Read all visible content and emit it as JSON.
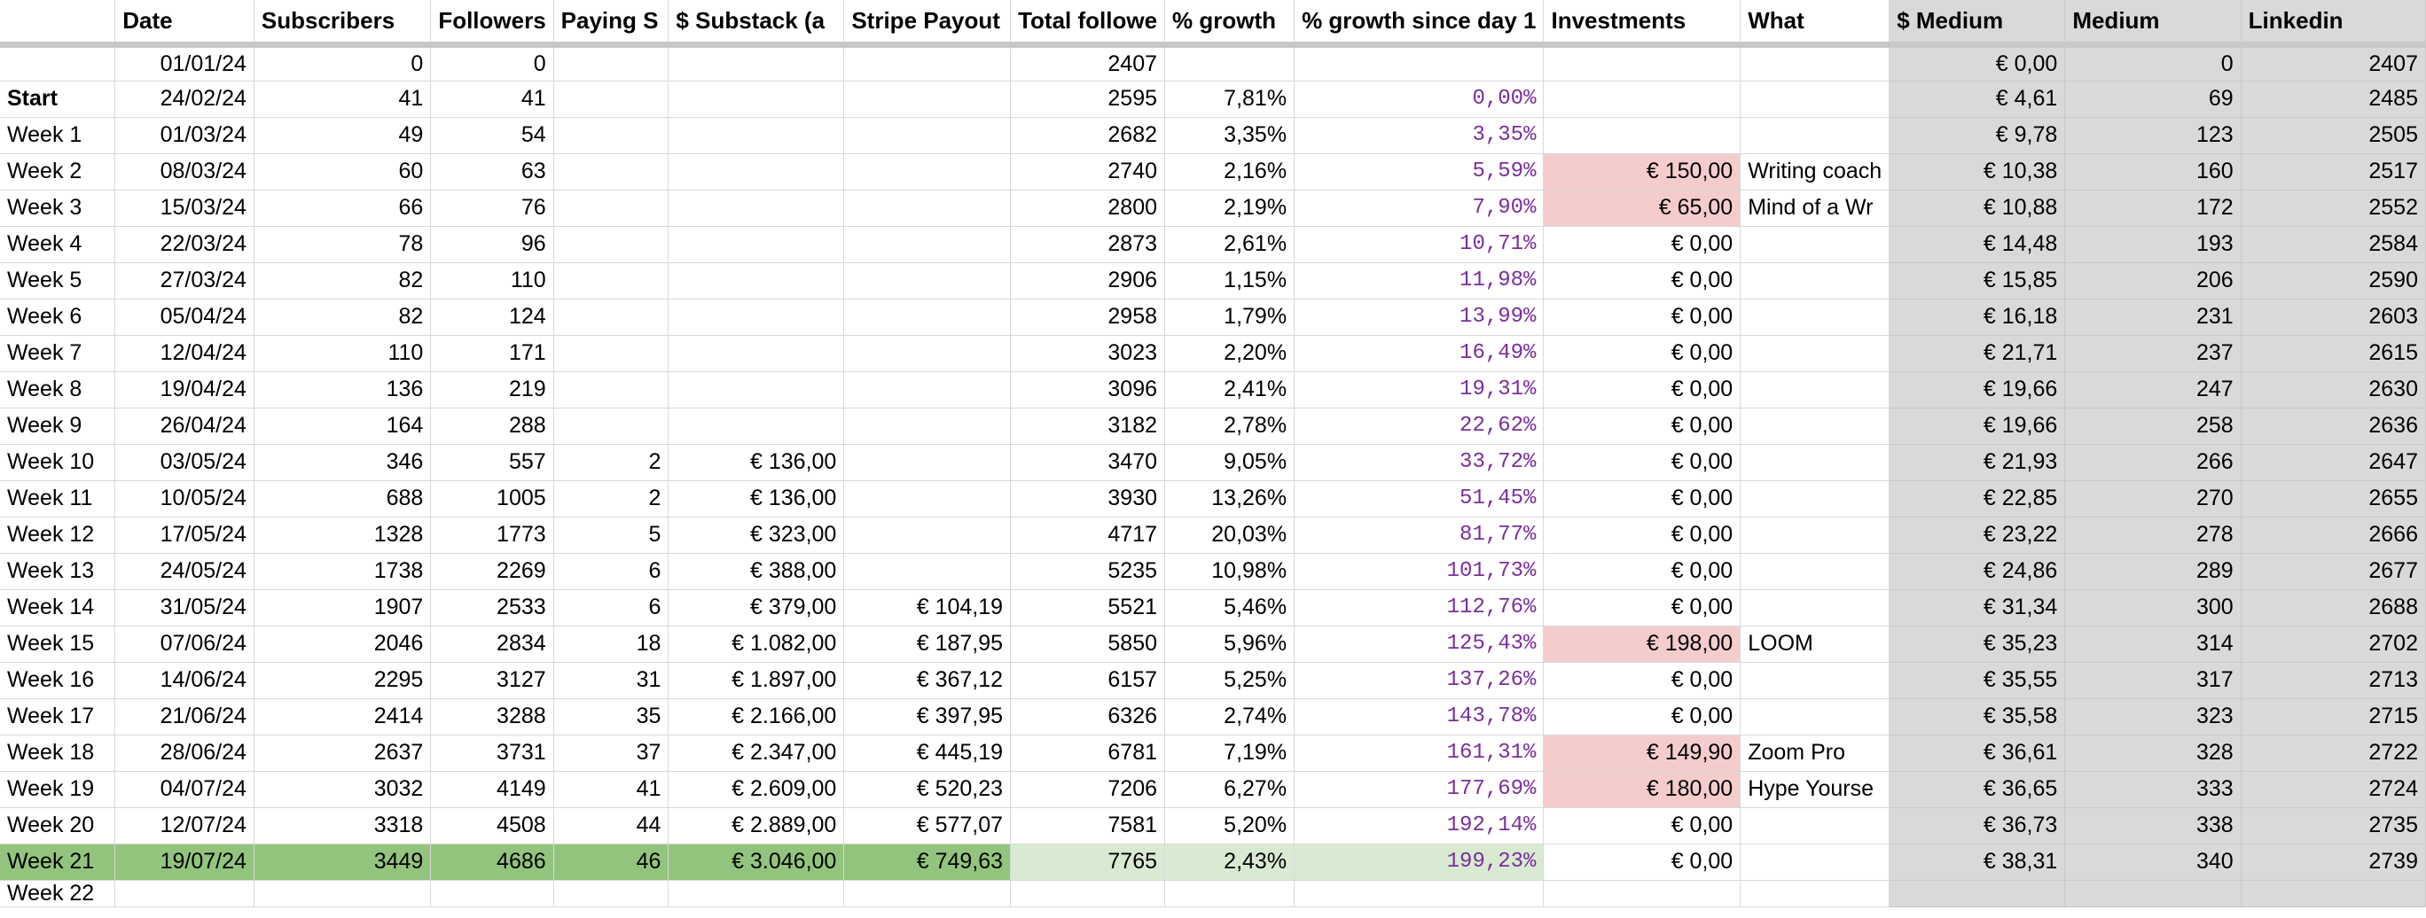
{
  "headers": [
    "",
    "Date",
    "Subscribers",
    "Followers",
    "Paying S",
    "$ Substack (a",
    "Stripe Payout",
    "Total followe",
    "% growth",
    "% growth since day 1",
    "Investments",
    "What",
    "$ Medium",
    "Medium",
    "Linkedin"
  ],
  "rows": [
    {
      "label": "",
      "date": "01/01/24",
      "subscribers": "0",
      "followers": "0",
      "paying": "",
      "substack": "",
      "stripe": "",
      "total": "2407",
      "growth": "",
      "growth_day1": "",
      "investments": "",
      "what": "",
      "medium_usd": "€ 0,00",
      "medium": "0",
      "linkedin": "2407"
    },
    {
      "label": "Start",
      "date": "24/02/24",
      "subscribers": "41",
      "followers": "41",
      "paying": "",
      "substack": "",
      "stripe": "",
      "total": "2595",
      "growth": "7,81%",
      "growth_day1": "0,00%",
      "investments": "",
      "what": "",
      "medium_usd": "€ 4,61",
      "medium": "69",
      "linkedin": "2485"
    },
    {
      "label": "Week 1",
      "date": "01/03/24",
      "subscribers": "49",
      "followers": "54",
      "paying": "",
      "substack": "",
      "stripe": "",
      "total": "2682",
      "growth": "3,35%",
      "growth_day1": "3,35%",
      "investments": "",
      "what": "",
      "medium_usd": "€ 9,78",
      "medium": "123",
      "linkedin": "2505"
    },
    {
      "label": "Week 2",
      "date": "08/03/24",
      "subscribers": "60",
      "followers": "63",
      "paying": "",
      "substack": "",
      "stripe": "",
      "total": "2740",
      "growth": "2,16%",
      "growth_day1": "5,59%",
      "investments": "€ 150,00",
      "what": "Writing coach",
      "medium_usd": "€ 10,38",
      "medium": "160",
      "linkedin": "2517"
    },
    {
      "label": "Week 3",
      "date": "15/03/24",
      "subscribers": "66",
      "followers": "76",
      "paying": "",
      "substack": "",
      "stripe": "",
      "total": "2800",
      "growth": "2,19%",
      "growth_day1": "7,90%",
      "investments": "€ 65,00",
      "what": "Mind of a Wr",
      "medium_usd": "€ 10,88",
      "medium": "172",
      "linkedin": "2552"
    },
    {
      "label": "Week 4",
      "date": "22/03/24",
      "subscribers": "78",
      "followers": "96",
      "paying": "",
      "substack": "",
      "stripe": "",
      "total": "2873",
      "growth": "2,61%",
      "growth_day1": "10,71%",
      "investments": "€ 0,00",
      "what": "",
      "medium_usd": "€ 14,48",
      "medium": "193",
      "linkedin": "2584"
    },
    {
      "label": "Week 5",
      "date": "27/03/24",
      "subscribers": "82",
      "followers": "110",
      "paying": "",
      "substack": "",
      "stripe": "",
      "total": "2906",
      "growth": "1,15%",
      "growth_day1": "11,98%",
      "investments": "€ 0,00",
      "what": "",
      "medium_usd": "€ 15,85",
      "medium": "206",
      "linkedin": "2590"
    },
    {
      "label": "Week 6",
      "date": "05/04/24",
      "subscribers": "82",
      "followers": "124",
      "paying": "",
      "substack": "",
      "stripe": "",
      "total": "2958",
      "growth": "1,79%",
      "growth_day1": "13,99%",
      "investments": "€ 0,00",
      "what": "",
      "medium_usd": "€ 16,18",
      "medium": "231",
      "linkedin": "2603"
    },
    {
      "label": "Week 7",
      "date": "12/04/24",
      "subscribers": "110",
      "followers": "171",
      "paying": "",
      "substack": "",
      "stripe": "",
      "total": "3023",
      "growth": "2,20%",
      "growth_day1": "16,49%",
      "investments": "€ 0,00",
      "what": "",
      "medium_usd": "€ 21,71",
      "medium": "237",
      "linkedin": "2615"
    },
    {
      "label": "Week 8",
      "date": "19/04/24",
      "subscribers": "136",
      "followers": "219",
      "paying": "",
      "substack": "",
      "stripe": "",
      "total": "3096",
      "growth": "2,41%",
      "growth_day1": "19,31%",
      "investments": "€ 0,00",
      "what": "",
      "medium_usd": "€ 19,66",
      "medium": "247",
      "linkedin": "2630"
    },
    {
      "label": "Week 9",
      "date": "26/04/24",
      "subscribers": "164",
      "followers": "288",
      "paying": "",
      "substack": "",
      "stripe": "",
      "total": "3182",
      "growth": "2,78%",
      "growth_day1": "22,62%",
      "investments": "€ 0,00",
      "what": "",
      "medium_usd": "€ 19,66",
      "medium": "258",
      "linkedin": "2636"
    },
    {
      "label": "Week 10",
      "date": "03/05/24",
      "subscribers": "346",
      "followers": "557",
      "paying": "2",
      "substack": "€ 136,00",
      "stripe": "",
      "total": "3470",
      "growth": "9,05%",
      "growth_day1": "33,72%",
      "investments": "€ 0,00",
      "what": "",
      "medium_usd": "€ 21,93",
      "medium": "266",
      "linkedin": "2647"
    },
    {
      "label": "Week 11",
      "date": "10/05/24",
      "subscribers": "688",
      "followers": "1005",
      "paying": "2",
      "substack": "€ 136,00",
      "stripe": "",
      "total": "3930",
      "growth": "13,26%",
      "growth_day1": "51,45%",
      "investments": "€ 0,00",
      "what": "",
      "medium_usd": "€ 22,85",
      "medium": "270",
      "linkedin": "2655"
    },
    {
      "label": "Week 12",
      "date": "17/05/24",
      "subscribers": "1328",
      "followers": "1773",
      "paying": "5",
      "substack": "€ 323,00",
      "stripe": "",
      "total": "4717",
      "growth": "20,03%",
      "growth_day1": "81,77%",
      "investments": "€ 0,00",
      "what": "",
      "medium_usd": "€ 23,22",
      "medium": "278",
      "linkedin": "2666"
    },
    {
      "label": "Week 13",
      "date": "24/05/24",
      "subscribers": "1738",
      "followers": "2269",
      "paying": "6",
      "substack": "€ 388,00",
      "stripe": "",
      "total": "5235",
      "growth": "10,98%",
      "growth_day1": "101,73%",
      "investments": "€ 0,00",
      "what": "",
      "medium_usd": "€ 24,86",
      "medium": "289",
      "linkedin": "2677"
    },
    {
      "label": "Week 14",
      "date": "31/05/24",
      "subscribers": "1907",
      "followers": "2533",
      "paying": "6",
      "substack": "€ 379,00",
      "stripe": "€ 104,19",
      "total": "5521",
      "growth": "5,46%",
      "growth_day1": "112,76%",
      "investments": "€ 0,00",
      "what": "",
      "medium_usd": "€ 31,34",
      "medium": "300",
      "linkedin": "2688"
    },
    {
      "label": "Week 15",
      "date": "07/06/24",
      "subscribers": "2046",
      "followers": "2834",
      "paying": "18",
      "substack": "€ 1.082,00",
      "stripe": "€ 187,95",
      "total": "5850",
      "growth": "5,96%",
      "growth_day1": "125,43%",
      "investments": "€ 198,00",
      "what": "LOOM",
      "medium_usd": "€ 35,23",
      "medium": "314",
      "linkedin": "2702"
    },
    {
      "label": "Week 16",
      "date": "14/06/24",
      "subscribers": "2295",
      "followers": "3127",
      "paying": "31",
      "substack": "€ 1.897,00",
      "stripe": "€ 367,12",
      "total": "6157",
      "growth": "5,25%",
      "growth_day1": "137,26%",
      "investments": "€ 0,00",
      "what": "",
      "medium_usd": "€ 35,55",
      "medium": "317",
      "linkedin": "2713"
    },
    {
      "label": "Week 17",
      "date": "21/06/24",
      "subscribers": "2414",
      "followers": "3288",
      "paying": "35",
      "substack": "€ 2.166,00",
      "stripe": "€ 397,95",
      "total": "6326",
      "growth": "2,74%",
      "growth_day1": "143,78%",
      "investments": "€ 0,00",
      "what": "",
      "medium_usd": "€ 35,58",
      "medium": "323",
      "linkedin": "2715"
    },
    {
      "label": "Week 18",
      "date": "28/06/24",
      "subscribers": "2637",
      "followers": "3731",
      "paying": "37",
      "substack": "€ 2.347,00",
      "stripe": "€ 445,19",
      "total": "6781",
      "growth": "7,19%",
      "growth_day1": "161,31%",
      "investments": "€ 149,90",
      "what": "Zoom Pro",
      "medium_usd": "€ 36,61",
      "medium": "328",
      "linkedin": "2722"
    },
    {
      "label": "Week 19",
      "date": "04/07/24",
      "subscribers": "3032",
      "followers": "4149",
      "paying": "41",
      "substack": "€ 2.609,00",
      "stripe": "€ 520,23",
      "total": "7206",
      "growth": "6,27%",
      "growth_day1": "177,69%",
      "investments": "€ 180,00",
      "what": "Hype Yourse",
      "medium_usd": "€ 36,65",
      "medium": "333",
      "linkedin": "2724"
    },
    {
      "label": "Week 20",
      "date": "12/07/24",
      "subscribers": "3318",
      "followers": "4508",
      "paying": "44",
      "substack": "€ 2.889,00",
      "stripe": "€ 577,07",
      "total": "7581",
      "growth": "5,20%",
      "growth_day1": "192,14%",
      "investments": "€ 0,00",
      "what": "",
      "medium_usd": "€ 36,73",
      "medium": "338",
      "linkedin": "2735"
    },
    {
      "label": "Week 21",
      "date": "19/07/24",
      "subscribers": "3449",
      "followers": "4686",
      "paying": "46",
      "substack": "€ 3.046,00",
      "stripe": "€ 749,63",
      "total": "7765",
      "growth": "2,43%",
      "growth_day1": "199,23%",
      "investments": "€ 0,00",
      "what": "",
      "medium_usd": "€ 38,31",
      "medium": "340",
      "linkedin": "2739"
    }
  ],
  "partial_label": "Week 22",
  "colors": {
    "purple_text": "#7a2e9c",
    "pink": "#f4cccc",
    "green": "#93c47d",
    "light_green": "#d9ead3",
    "gray": "#d9d9d9"
  }
}
